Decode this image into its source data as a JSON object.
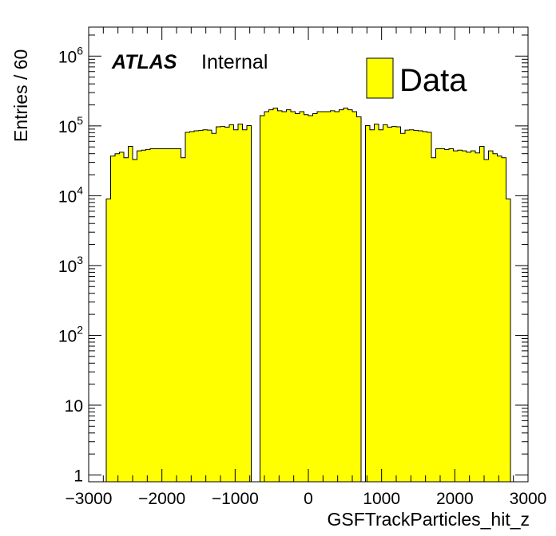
{
  "chart_data": {
    "type": "histogram",
    "xlabel": "GSFTrackParticles_hit_z",
    "ylabel": "Entries / 60",
    "xlim": [
      -3000,
      3000
    ],
    "ylim": [
      0.8,
      2600000
    ],
    "yscale": "log",
    "bin_width": 60,
    "x_ticks": [
      "−3000",
      "−2000",
      "−1000",
      "0",
      "1000",
      "2000",
      "3000"
    ],
    "y_ticks": [
      {
        "value": 1,
        "base": "1",
        "exp": ""
      },
      {
        "value": 10,
        "base": "10",
        "exp": ""
      },
      {
        "value": 100,
        "base": "10",
        "exp": "2"
      },
      {
        "value": 1000,
        "base": "10",
        "exp": "3"
      },
      {
        "value": 10000,
        "base": "10",
        "exp": "4"
      },
      {
        "value": 100000,
        "base": "10",
        "exp": "5"
      },
      {
        "value": 1000000,
        "base": "10",
        "exp": "6"
      }
    ],
    "label": {
      "experiment": "ATLAS",
      "status": "Internal"
    },
    "legend": {
      "entries": [
        "Data"
      ],
      "position": "top-right"
    },
    "fill_color": "#ffff00",
    "series": [
      {
        "name": "Data",
        "bins": [
          [
            -2760,
            9000
          ],
          [
            -2700,
            37000
          ],
          [
            -2640,
            40000
          ],
          [
            -2580,
            42000
          ],
          [
            -2520,
            35000
          ],
          [
            -2460,
            51000
          ],
          [
            -2400,
            33000
          ],
          [
            -2340,
            44000
          ],
          [
            -2280,
            45000
          ],
          [
            -2220,
            46000
          ],
          [
            -2160,
            47000
          ],
          [
            -2100,
            47000
          ],
          [
            -2040,
            47000
          ],
          [
            -1980,
            47000
          ],
          [
            -1920,
            47000
          ],
          [
            -1860,
            47000
          ],
          [
            -1800,
            47000
          ],
          [
            -1740,
            35000
          ],
          [
            -1680,
            81000
          ],
          [
            -1620,
            83000
          ],
          [
            -1560,
            85000
          ],
          [
            -1500,
            86000
          ],
          [
            -1440,
            88000
          ],
          [
            -1380,
            87000
          ],
          [
            -1320,
            78000
          ],
          [
            -1260,
            97000
          ],
          [
            -1200,
            98000
          ],
          [
            -1140,
            96000
          ],
          [
            -1080,
            104000
          ],
          [
            -1020,
            88000
          ],
          [
            -960,
            106000
          ],
          [
            -900,
            88000
          ],
          [
            -840,
            101000
          ],
          [
            -660,
            140000
          ],
          [
            -600,
            160000
          ],
          [
            -540,
            170000
          ],
          [
            -480,
            180000
          ],
          [
            -420,
            165000
          ],
          [
            -360,
            160000
          ],
          [
            -300,
            170000
          ],
          [
            -240,
            160000
          ],
          [
            -180,
            150000
          ],
          [
            -120,
            160000
          ],
          [
            -60,
            145000
          ],
          [
            0,
            140000
          ],
          [
            60,
            150000
          ],
          [
            120,
            160000
          ],
          [
            180,
            160000
          ],
          [
            240,
            160000
          ],
          [
            300,
            165000
          ],
          [
            360,
            160000
          ],
          [
            420,
            170000
          ],
          [
            480,
            180000
          ],
          [
            540,
            170000
          ],
          [
            600,
            160000
          ],
          [
            660,
            135000
          ],
          [
            780,
            101000
          ],
          [
            840,
            88000
          ],
          [
            900,
            106000
          ],
          [
            960,
            88000
          ],
          [
            1020,
            104000
          ],
          [
            1080,
            96000
          ],
          [
            1140,
            98000
          ],
          [
            1200,
            97000
          ],
          [
            1260,
            78000
          ],
          [
            1320,
            87000
          ],
          [
            1380,
            88000
          ],
          [
            1440,
            86000
          ],
          [
            1500,
            85000
          ],
          [
            1560,
            83000
          ],
          [
            1620,
            81000
          ],
          [
            1680,
            35000
          ],
          [
            1740,
            47000
          ],
          [
            1800,
            47000
          ],
          [
            1860,
            46000
          ],
          [
            1920,
            47000
          ],
          [
            1980,
            44000
          ],
          [
            2040,
            45000
          ],
          [
            2100,
            44000
          ],
          [
            2160,
            42000
          ],
          [
            2220,
            44000
          ],
          [
            2280,
            41000
          ],
          [
            2340,
            51000
          ],
          [
            2400,
            33000
          ],
          [
            2460,
            44000
          ],
          [
            2520,
            40000
          ],
          [
            2580,
            37000
          ],
          [
            2640,
            35000
          ],
          [
            2700,
            9000
          ]
        ]
      }
    ]
  }
}
